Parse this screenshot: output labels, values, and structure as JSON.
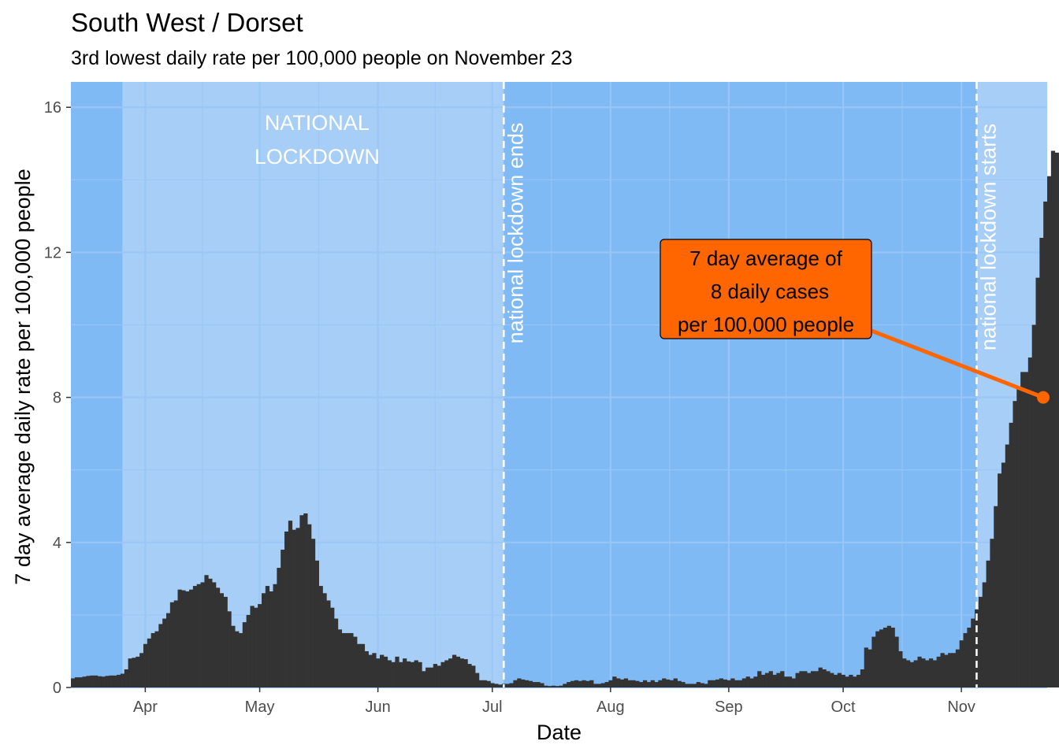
{
  "title": "South West / Dorset",
  "subtitle": "3rd lowest daily rate per 100,000 people on November 23",
  "colors": {
    "panel": "#80BAF4",
    "lockdown_band": "#A6CEF7",
    "bar": "#333333",
    "highlight": "#FF6600",
    "gridline": "#9AC7F5",
    "vline": "#ffffff"
  },
  "chart_data": {
    "type": "bar",
    "xlabel": "Date",
    "ylabel": "7 day average daily rate per 100,000 people",
    "x_range": [
      "2020-03-13",
      "2020-11-23"
    ],
    "ylim": [
      0,
      16.7
    ],
    "y_ticks": [
      0,
      4,
      8,
      12,
      16
    ],
    "x_ticks": [
      {
        "date": "2020-04-01",
        "label": "Apr"
      },
      {
        "date": "2020-05-01",
        "label": "May"
      },
      {
        "date": "2020-06-01",
        "label": "Jun"
      },
      {
        "date": "2020-07-01",
        "label": "Jul"
      },
      {
        "date": "2020-08-01",
        "label": "Aug"
      },
      {
        "date": "2020-09-01",
        "label": "Sep"
      },
      {
        "date": "2020-10-01",
        "label": "Oct"
      },
      {
        "date": "2020-11-01",
        "label": "Nov"
      }
    ],
    "grid": true,
    "bands": [
      {
        "start": "2020-03-26",
        "end": "2020-07-04",
        "label_lines": [
          "NATIONAL",
          "LOCKDOWN"
        ]
      },
      {
        "start": "2020-11-05",
        "end": "2020-11-23",
        "label_lines": []
      }
    ],
    "vlines": [
      {
        "date": "2020-07-04",
        "label": "national lockdown ends"
      },
      {
        "date": "2020-11-05",
        "label": "national lockdown starts"
      }
    ],
    "annotation": {
      "lines": [
        "7 day average of",
        "8 daily cases",
        "per 100,000 people"
      ],
      "point_date": "2020-11-23",
      "point_value": 8.0
    },
    "series": [
      {
        "start_date": "2020-03-13",
        "values": [
          0.25,
          0.28,
          0.28,
          0.3,
          0.32,
          0.33,
          0.33,
          0.31,
          0.3,
          0.32,
          0.33,
          0.33,
          0.35,
          0.38,
          0.5,
          0.8,
          0.82,
          0.85,
          0.95,
          1.2,
          1.35,
          1.5,
          1.55,
          1.75,
          1.9,
          2.05,
          2.35,
          2.4,
          2.7,
          2.68,
          2.65,
          2.7,
          2.8,
          2.85,
          2.9,
          3.1,
          3.0,
          2.9,
          2.75,
          2.6,
          2.5,
          2.1,
          1.7,
          1.55,
          1.5,
          1.8,
          2.0,
          2.25,
          2.2,
          2.3,
          2.6,
          2.8,
          2.65,
          2.85,
          3.3,
          3.8,
          4.3,
          4.6,
          4.35,
          4.4,
          4.75,
          4.8,
          4.5,
          4.1,
          3.5,
          2.8,
          2.6,
          2.4,
          2.2,
          1.9,
          1.6,
          1.5,
          1.5,
          1.5,
          1.4,
          1.2,
          1.2,
          1.0,
          0.9,
          0.95,
          0.8,
          0.9,
          0.85,
          0.75,
          0.7,
          0.85,
          0.7,
          0.8,
          0.72,
          0.7,
          0.75,
          0.7,
          0.45,
          0.55,
          0.55,
          0.65,
          0.6,
          0.7,
          0.75,
          0.8,
          0.9,
          0.85,
          0.8,
          0.78,
          0.65,
          0.6,
          0.4,
          0.2,
          0.2,
          0.18,
          0.12,
          0.1,
          0.08,
          0.1,
          0.1,
          0.12,
          0.2,
          0.25,
          0.22,
          0.2,
          0.18,
          0.15,
          0.15,
          0.12,
          0.05,
          0.04,
          0.05,
          0.04,
          0.05,
          0.1,
          0.15,
          0.18,
          0.2,
          0.18,
          0.2,
          0.18,
          0.2,
          0.1,
          0.1,
          0.12,
          0.15,
          0.2,
          0.3,
          0.25,
          0.22,
          0.25,
          0.2,
          0.2,
          0.18,
          0.15,
          0.2,
          0.15,
          0.2,
          0.15,
          0.2,
          0.25,
          0.22,
          0.2,
          0.25,
          0.18,
          0.15,
          0.1,
          0.1,
          0.1,
          0.15,
          0.12,
          0.1,
          0.2,
          0.2,
          0.22,
          0.25,
          0.22,
          0.2,
          0.25,
          0.2,
          0.2,
          0.25,
          0.3,
          0.25,
          0.3,
          0.45,
          0.35,
          0.4,
          0.45,
          0.35,
          0.4,
          0.45,
          0.3,
          0.3,
          0.25,
          0.4,
          0.45,
          0.45,
          0.4,
          0.45,
          0.45,
          0.55,
          0.5,
          0.45,
          0.4,
          0.35,
          0.4,
          0.35,
          0.3,
          0.35,
          0.3,
          0.35,
          0.5,
          1.1,
          1.05,
          1.4,
          1.55,
          1.6,
          1.65,
          1.7,
          1.65,
          1.4,
          1.0,
          0.8,
          0.75,
          0.7,
          0.75,
          0.85,
          0.8,
          0.75,
          0.8,
          0.75,
          0.85,
          0.95,
          0.9,
          0.95,
          0.95,
          1.05,
          1.3,
          1.5,
          1.65,
          1.9,
          2.15,
          2.5,
          2.9,
          3.5,
          4.1,
          5.0,
          5.9,
          6.2,
          6.7,
          7.3,
          7.9,
          8.3,
          8.7,
          8.7,
          9.1,
          10.0,
          11.3,
          12.4,
          13.4,
          14.1,
          14.8,
          14.75,
          14.7,
          14.7,
          14.85,
          14.8,
          14.6,
          14.5,
          14.6,
          14.8,
          14.4,
          14.4,
          15.0,
          13.5,
          13.2,
          13.5,
          14.0,
          14.5,
          15.2,
          15.8,
          16.2,
          16.7,
          16.5,
          15.8,
          15.6,
          15.9,
          15.3,
          14.0,
          13.5,
          12.6,
          12.1,
          11.0,
          9.9,
          9.4,
          8.4,
          8.0
        ]
      }
    ]
  }
}
